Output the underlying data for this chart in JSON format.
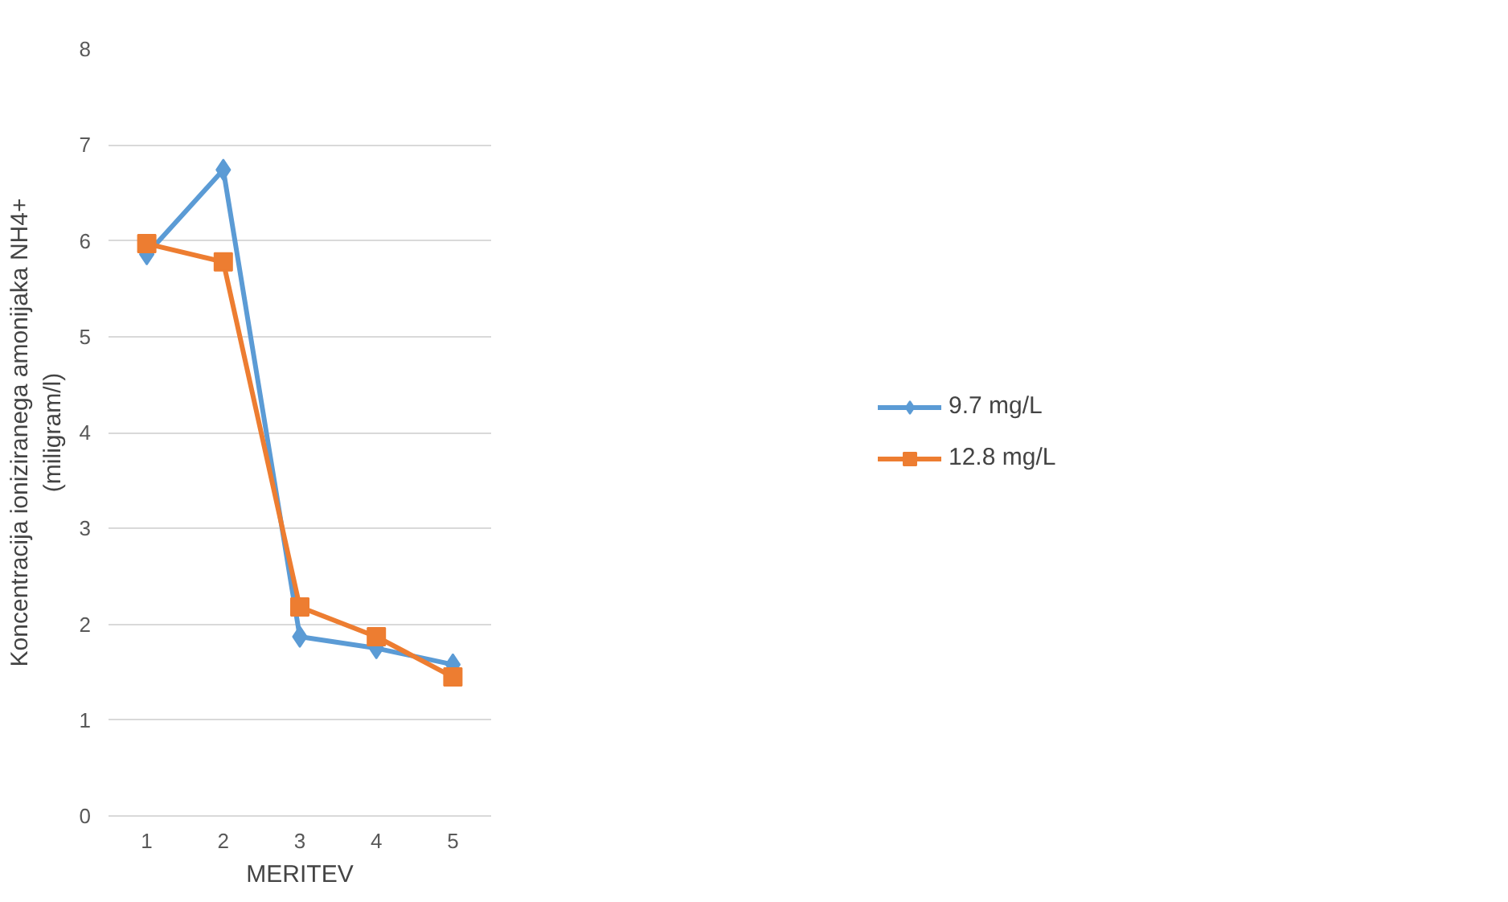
{
  "chart_data": {
    "type": "line",
    "xlabel": "MERITEV",
    "ylabel": "Koncentracija ioniziranega amonijaka NH4+\n(miligram/l)",
    "categories": [
      "1",
      "2",
      "3",
      "4",
      "5"
    ],
    "series": [
      {
        "name": "9.7 mg/L",
        "color": "#5b9bd5",
        "marker": "diamond",
        "values": [
          5.86,
          6.74,
          1.87,
          1.75,
          1.58
        ]
      },
      {
        "name": "12.8 mg/L",
        "color": "#ed7d31",
        "marker": "square",
        "values": [
          5.97,
          5.78,
          2.18,
          1.87,
          1.45
        ]
      }
    ],
    "ylim": [
      0,
      8
    ],
    "yticks": [
      0,
      1,
      2,
      3,
      4,
      5,
      6,
      7,
      8
    ],
    "grid": "y",
    "legend": "right",
    "line_style": "solid"
  }
}
